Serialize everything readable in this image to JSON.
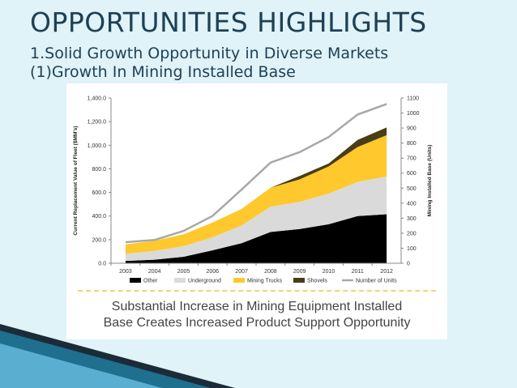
{
  "slide": {
    "title": "OPPORTUNITIES HIGHLIGHTS",
    "subtitle_1": "1.Solid Growth Opportunity in Diverse Markets",
    "subtitle_2": "(1)Growth In Mining Installed Base",
    "caption_line_1": "Substantial Increase in Mining Equipment Installed",
    "caption_line_2": "Base Creates Increased Product Support Opportunity"
  },
  "chart_data": {
    "type": "area",
    "stacked": true,
    "categories": [
      "2003",
      "2004",
      "2005",
      "2006",
      "2007",
      "2008",
      "2009",
      "2010",
      "2011",
      "2012"
    ],
    "ylabel": "Current Replacement Value of Fleet ($MM's)",
    "y2label": "Mining Installed Base (Units)",
    "ylim": [
      0,
      1400
    ],
    "y2lim": [
      0,
      1100
    ],
    "yticks": [
      "0.0",
      "200.0",
      "400.0",
      "600.0",
      "800.0",
      "1,000.0",
      "1,200.0",
      "1,400.0"
    ],
    "y2ticks": [
      "0",
      "100",
      "200",
      "300",
      "400",
      "500",
      "600",
      "700",
      "800",
      "900",
      "1000",
      "1100"
    ],
    "series": [
      {
        "name": "Other",
        "color": "#000000",
        "values": [
          20,
          30,
          55,
          110,
          170,
          265,
          290,
          330,
          400,
          415
        ]
      },
      {
        "name": "Underground",
        "color": "#dadada",
        "values": [
          60,
          75,
          90,
          110,
          150,
          215,
          230,
          260,
          290,
          320
        ]
      },
      {
        "name": "Mining Trucks",
        "color": "#ffc82d",
        "values": [
          80,
          85,
          100,
          125,
          140,
          160,
          190,
          230,
          295,
          350
        ]
      },
      {
        "name": "Shovels",
        "color": "#4a3c17",
        "values": [
          0,
          0,
          0,
          0,
          0,
          0,
          30,
          25,
          60,
          65
        ]
      }
    ],
    "line_series": {
      "name": "Number of Units",
      "color": "#a8a8a8",
      "axis": "right",
      "values": [
        140,
        155,
        215,
        315,
        490,
        670,
        740,
        840,
        990,
        1060
      ]
    },
    "legend": [
      "Other",
      "Underground",
      "Mining Trucks",
      "Shovels",
      "Number of Units"
    ],
    "legend_position": "bottom",
    "grid": false
  }
}
